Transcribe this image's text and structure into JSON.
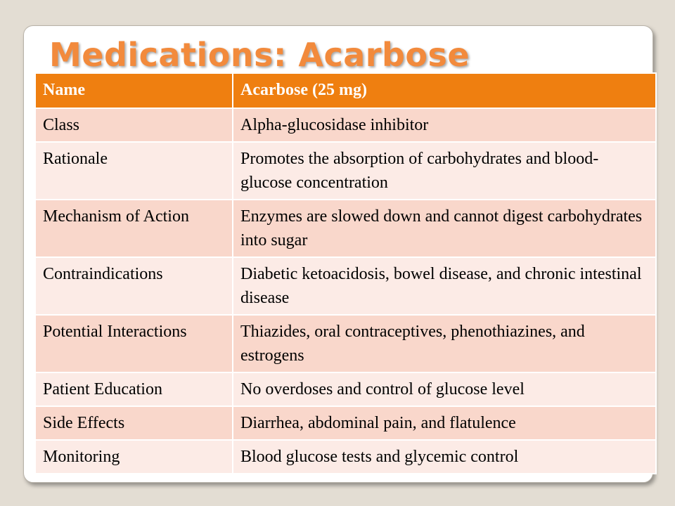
{
  "title": "Medications: Acarbose",
  "colors": {
    "header": "#ef7f10",
    "title": "#f28a3c",
    "row_odd": "#f9d7cb",
    "row_even": "#fcebe6"
  },
  "table": {
    "header": [
      "Name",
      "Acarbose (25 mg)"
    ],
    "rows": [
      [
        "Class",
        "Alpha-glucosidase inhibitor"
      ],
      [
        "Rationale",
        "Promotes the absorption of carbohydrates and blood-glucose concentration"
      ],
      [
        "Mechanism of Action",
        "Enzymes are slowed down and cannot digest carbohydrates into sugar"
      ],
      [
        "Contraindications",
        "Diabetic ketoacidosis, bowel disease, and chronic intestinal disease"
      ],
      [
        "Potential Interactions",
        "Thiazides, oral contraceptives, phenothiazines, and estrogens"
      ],
      [
        "Patient Education",
        "No overdoses and control of glucose level"
      ],
      [
        "Side Effects",
        "Diarrhea, abdominal pain, and flatulence"
      ],
      [
        "Monitoring",
        "Blood glucose tests and glycemic control"
      ]
    ]
  }
}
